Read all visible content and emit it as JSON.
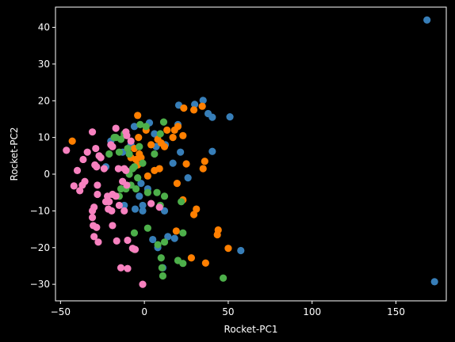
{
  "chart_data": {
    "type": "scatter",
    "xlabel": "Rocket-PC1",
    "ylabel": "Rocket-PC2",
    "xlim": [
      -53,
      180
    ],
    "ylim": [
      -34.5,
      45.5
    ],
    "xticks": [
      -50,
      0,
      50,
      100,
      150
    ],
    "yticks": [
      -30,
      -20,
      -10,
      0,
      10,
      20,
      30,
      40
    ],
    "grid": false,
    "background": "#000000",
    "axis_color": "#ffffff",
    "series": [
      {
        "color": "#377eb8",
        "points": [
          [
            168.5,
            42
          ],
          [
            173,
            -29.3
          ],
          [
            57.5,
            -20.8
          ],
          [
            51,
            15.6
          ],
          [
            40.5,
            15.5
          ],
          [
            38,
            16.5
          ],
          [
            35,
            20.1
          ],
          [
            30,
            19
          ],
          [
            20.5,
            18.8
          ],
          [
            20,
            13.5
          ],
          [
            40.5,
            6.2
          ],
          [
            21.5,
            6
          ],
          [
            26,
            -1
          ],
          [
            18,
            -17.5
          ],
          [
            11,
            -25.5
          ],
          [
            8,
            -20
          ],
          [
            5,
            -17.8
          ],
          [
            12,
            -10
          ],
          [
            -1,
            -10
          ],
          [
            -5.5,
            -9.5
          ],
          [
            -1,
            -8.5
          ],
          [
            -12,
            -8.5
          ],
          [
            -3,
            -6
          ],
          [
            2,
            -4
          ],
          [
            -2,
            -2.5
          ],
          [
            -13,
            6
          ],
          [
            -8,
            8
          ],
          [
            -6,
            13
          ],
          [
            3,
            14
          ],
          [
            7,
            7.5
          ],
          [
            12.5,
            8
          ],
          [
            6,
            11
          ],
          [
            17,
            3
          ],
          [
            -20,
            9
          ],
          [
            -23,
            2
          ],
          [
            14,
            -17
          ]
        ]
      },
      {
        "color": "#ff7f00",
        "points": [
          [
            50,
            -20.2
          ],
          [
            44,
            -15.2
          ],
          [
            43.5,
            -16.5
          ],
          [
            36.5,
            -24.2
          ],
          [
            28,
            -22.8
          ],
          [
            19,
            -15.5
          ],
          [
            31,
            -9.5
          ],
          [
            29.5,
            -11
          ],
          [
            23,
            -7
          ],
          [
            19.5,
            -2.5
          ],
          [
            25,
            2.8
          ],
          [
            35,
            1.5
          ],
          [
            36,
            3.5
          ],
          [
            23,
            10.5
          ],
          [
            17,
            10
          ],
          [
            18,
            12
          ],
          [
            20,
            13
          ],
          [
            29.5,
            17.5
          ],
          [
            34.5,
            18.5
          ],
          [
            23.5,
            18
          ],
          [
            13.5,
            12
          ],
          [
            10,
            8.5
          ],
          [
            8,
            9.5
          ],
          [
            12,
            7.5
          ],
          [
            4,
            8
          ],
          [
            -3,
            5.5
          ],
          [
            -5,
            4
          ],
          [
            -2,
            4.5
          ],
          [
            9,
            1.5
          ],
          [
            6,
            1
          ],
          [
            2,
            -0.5
          ],
          [
            -4,
            2.5
          ],
          [
            -6,
            7
          ],
          [
            -3.5,
            10
          ],
          [
            -4,
            16
          ],
          [
            1,
            12
          ],
          [
            -43,
            9
          ],
          [
            -8,
            4.5
          ]
        ]
      },
      {
        "color": "#4daf4a",
        "points": [
          [
            47,
            -28.3
          ],
          [
            23,
            -24.3
          ],
          [
            20,
            -23.5
          ],
          [
            11,
            -27.7
          ],
          [
            10.5,
            -25.5
          ],
          [
            10,
            -22.8
          ],
          [
            12,
            -18.5
          ],
          [
            8,
            -19.2
          ],
          [
            -6,
            -20.5
          ],
          [
            -6,
            -16
          ],
          [
            2,
            -14.7
          ],
          [
            23,
            -16
          ],
          [
            9.5,
            -8.5
          ],
          [
            7.5,
            -5
          ],
          [
            12,
            -6
          ],
          [
            -5,
            -4
          ],
          [
            -4,
            -1
          ],
          [
            -8,
            -3
          ],
          [
            -11,
            -4
          ],
          [
            -14,
            -4
          ],
          [
            -15,
            -6
          ],
          [
            2,
            -5
          ],
          [
            -9,
            0
          ],
          [
            -7,
            1.5
          ],
          [
            -6,
            2
          ],
          [
            -1,
            3
          ],
          [
            6,
            5.5
          ],
          [
            -10,
            7
          ],
          [
            -15,
            6
          ],
          [
            -14,
            9.5
          ],
          [
            -17,
            10
          ],
          [
            -12,
            11
          ],
          [
            1,
            13
          ],
          [
            9.5,
            11
          ],
          [
            11.5,
            14.2
          ],
          [
            -2.5,
            13.5
          ],
          [
            -18,
            10
          ],
          [
            -21,
            5.5
          ],
          [
            -9,
            5.5
          ],
          [
            -3,
            7.5
          ],
          [
            22,
            -7.5
          ]
        ]
      },
      {
        "color": "#f781bf",
        "points": [
          [
            -46.5,
            6.5
          ],
          [
            -40,
            1
          ],
          [
            -42,
            -3.2
          ],
          [
            -38.5,
            -4.5
          ],
          [
            -37,
            -3
          ],
          [
            -35.5,
            -2
          ],
          [
            -36.5,
            4
          ],
          [
            -34,
            6
          ],
          [
            -29,
            7
          ],
          [
            -27,
            5
          ],
          [
            -26,
            4.5
          ],
          [
            -29.5,
            2.5
          ],
          [
            -24,
            1.5
          ],
          [
            -31,
            11.5
          ],
          [
            -28.5,
            2
          ],
          [
            -28,
            -5.5
          ],
          [
            -28,
            -3
          ],
          [
            -23,
            -7.5
          ],
          [
            -21,
            -7.5
          ],
          [
            -21.5,
            -9.5
          ],
          [
            -22,
            -6
          ],
          [
            -17,
            -6
          ],
          [
            -15,
            -8.5
          ],
          [
            -19,
            -5.5
          ],
          [
            -19.5,
            -10
          ],
          [
            -12,
            -10
          ],
          [
            -30,
            -9
          ],
          [
            -31,
            -10
          ],
          [
            -31,
            -11.8
          ],
          [
            -30.5,
            -14
          ],
          [
            -28.5,
            -14.5
          ],
          [
            -30,
            -17
          ],
          [
            -27.5,
            -18.5
          ],
          [
            -19,
            -14
          ],
          [
            -16.5,
            -18.2
          ],
          [
            -10,
            -18
          ],
          [
            -7,
            -20.2
          ],
          [
            -5.5,
            -20.5
          ],
          [
            -14,
            -25.5
          ],
          [
            -10,
            -25.7
          ],
          [
            -1,
            -30
          ],
          [
            -17,
            12.5
          ],
          [
            -20,
            8
          ],
          [
            -19,
            7.5
          ],
          [
            -11,
            11.5
          ],
          [
            -12,
            1.5
          ],
          [
            -15.5,
            1.5
          ],
          [
            -11,
            1
          ],
          [
            -13,
            -2
          ],
          [
            -10.5,
            -3
          ],
          [
            -8,
            9
          ],
          [
            -10.5,
            10.5
          ],
          [
            4,
            -8
          ],
          [
            9,
            -9
          ]
        ]
      }
    ]
  }
}
